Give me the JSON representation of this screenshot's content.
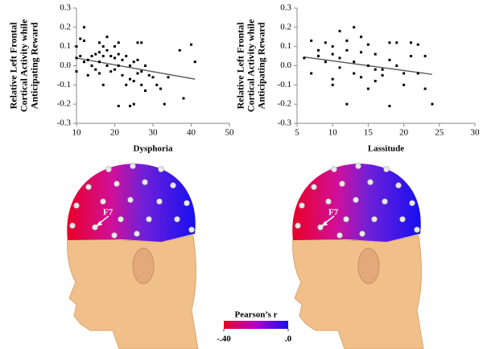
{
  "chart_data": [
    {
      "type": "scatter",
      "xlabel": "Dysphoria",
      "ylabel": "Relative Left Frontal Cortical Activity while Anticipating Reward",
      "x": [
        10,
        10,
        10,
        11,
        12,
        12,
        11,
        12,
        13,
        13,
        14,
        14,
        15,
        15,
        16,
        16,
        16,
        16,
        17,
        17,
        17,
        18,
        18,
        18,
        19,
        19,
        20,
        20,
        20,
        21,
        21,
        21,
        22,
        22,
        23,
        23,
        24,
        24,
        25,
        25,
        25,
        26,
        26,
        26,
        27,
        27,
        27,
        28,
        28,
        29,
        30,
        31,
        32,
        33,
        34,
        37,
        38,
        40,
        41,
        24,
        21
      ],
      "y": [
        0.1,
        0.04,
        -0.03,
        0.14,
        0.2,
        0.13,
        0.05,
        0.02,
        0.03,
        -0.05,
        0.05,
        0,
        -0.02,
        0.06,
        0.12,
        0.07,
        0.02,
        -0.04,
        0.1,
        0.05,
        -0.1,
        0.15,
        0.08,
        0,
        -0.03,
        0.05,
        0.1,
        0.04,
        -0.02,
        0.12,
        0.06,
        0,
        0.03,
        -0.05,
        0.05,
        -0.1,
        0,
        -0.07,
        0.02,
        -0.08,
        -0.2,
        0.12,
        0.03,
        -0.04,
        0.12,
        -0.03,
        -0.1,
        0,
        -0.13,
        -0.05,
        -0.06,
        -0.1,
        -0.12,
        -0.2,
        -0.06,
        0.08,
        -0.17,
        0.11,
        0.02,
        -0.21,
        -0.21
      ],
      "color": "#000000",
      "trendline": {
        "x": [
          10,
          41
        ],
        "y": [
          0.04,
          -0.07
        ],
        "color": "#555555"
      },
      "xlim": [
        10,
        50
      ],
      "xticks": [
        10,
        20,
        30,
        40,
        50
      ],
      "ylim": [
        -0.3,
        0.3
      ],
      "yticks": [
        0.3,
        0.2,
        0.1,
        {
          "value": 0,
          "label": "0.0"
        },
        -0.1,
        -0.2,
        -0.3
      ]
    },
    {
      "type": "scatter",
      "xlabel": "Lassitude",
      "ylabel": "Relative Left Frontal Cortical Activity while Anticipating Reward",
      "x": [
        6,
        7,
        7,
        8,
        8,
        9,
        9,
        10,
        10,
        10,
        10,
        11,
        11,
        11,
        12,
        12,
        12,
        13,
        13,
        13,
        14,
        14,
        14,
        15,
        15,
        15,
        16,
        16,
        17,
        17,
        18,
        18,
        18,
        19,
        19,
        20,
        21,
        21,
        22,
        22,
        23,
        23,
        24,
        20,
        16
      ],
      "y": [
        0.04,
        0.13,
        -0.04,
        0.08,
        0.05,
        0.12,
        0.02,
        0.1,
        0.06,
        -0.1,
        -0.07,
        0.18,
        0.04,
        -0.01,
        0.13,
        0.08,
        -0.2,
        0.2,
        0.02,
        -0.04,
        0.15,
        0.07,
        -0.06,
        0.11,
        0,
        -0.12,
        0.06,
        -0.08,
        -0.02,
        -0.05,
        0.12,
        0.03,
        -0.21,
        0.12,
        0,
        -0.1,
        0.12,
        0.05,
        0.11,
        -0.04,
        0.05,
        -0.12,
        -0.2,
        -0.04,
        -0.02
      ],
      "color": "#000000",
      "trendline": {
        "x": [
          6,
          24
        ],
        "y": [
          0.045,
          -0.045
        ],
        "color": "#555555"
      },
      "xlim": [
        5,
        30
      ],
      "xticks": [
        5,
        10,
        15,
        20,
        25,
        30
      ],
      "ylim": [
        -0.3,
        0.3
      ],
      "yticks": [
        0.3,
        0.2,
        0.1,
        {
          "value": 0,
          "label": "0.0"
        },
        -0.1,
        -0.2,
        -0.3
      ]
    }
  ],
  "colorbar": {
    "title": "Pearson’s r",
    "ticks": [
      {
        "value": -0.4,
        "label": "-.40"
      },
      {
        "value": 0,
        "label": ".0"
      }
    ],
    "colors": [
      "#e8002a",
      "#b000c8",
      "#1a10f0"
    ]
  },
  "electrode_labels": [
    "F7",
    "F7"
  ]
}
